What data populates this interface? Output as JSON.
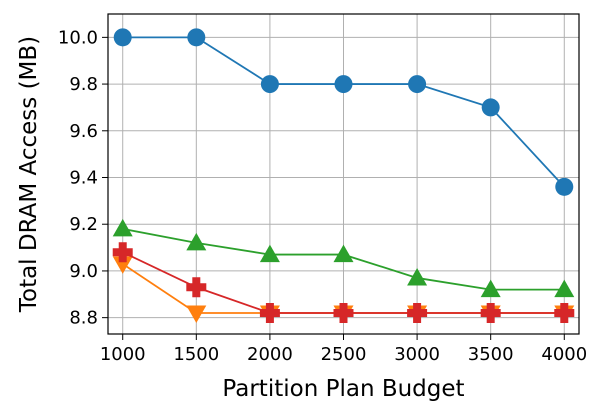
{
  "chart_data": {
    "type": "line",
    "title": "",
    "xlabel": "Partition Plan Budget",
    "ylabel": "Total DRAM Access (MB)",
    "x": [
      1000,
      1500,
      2000,
      2500,
      3000,
      3500,
      4000
    ],
    "xticks": [
      "1000",
      "1500",
      "2000",
      "2500",
      "3000",
      "3500",
      "4000"
    ],
    "yticks": [
      "8.8",
      "9.0",
      "9.2",
      "9.4",
      "9.6",
      "9.8",
      "10.0"
    ],
    "ytick_values": [
      8.8,
      9.0,
      9.2,
      9.4,
      9.6,
      9.8,
      10.0
    ],
    "xlim": [
      900,
      4100
    ],
    "ylim": [
      8.73,
      10.1
    ],
    "grid": true,
    "series": [
      {
        "color": "#1f77b4",
        "marker": "circle",
        "values": [
          10.0,
          10.0,
          9.8,
          9.8,
          9.8,
          9.7,
          9.36
        ]
      },
      {
        "color": "#2ca02c",
        "marker": "triangle-up",
        "values": [
          9.18,
          9.12,
          9.07,
          9.07,
          8.97,
          8.92,
          8.92
        ]
      },
      {
        "color": "#ff7f0e",
        "marker": "triangle-down",
        "values": [
          9.03,
          8.82,
          8.82,
          8.82,
          8.82,
          8.82,
          8.82
        ]
      },
      {
        "color": "#d62728",
        "marker": "plus",
        "values": [
          9.08,
          8.93,
          8.82,
          8.82,
          8.82,
          8.82,
          8.82
        ]
      }
    ]
  }
}
